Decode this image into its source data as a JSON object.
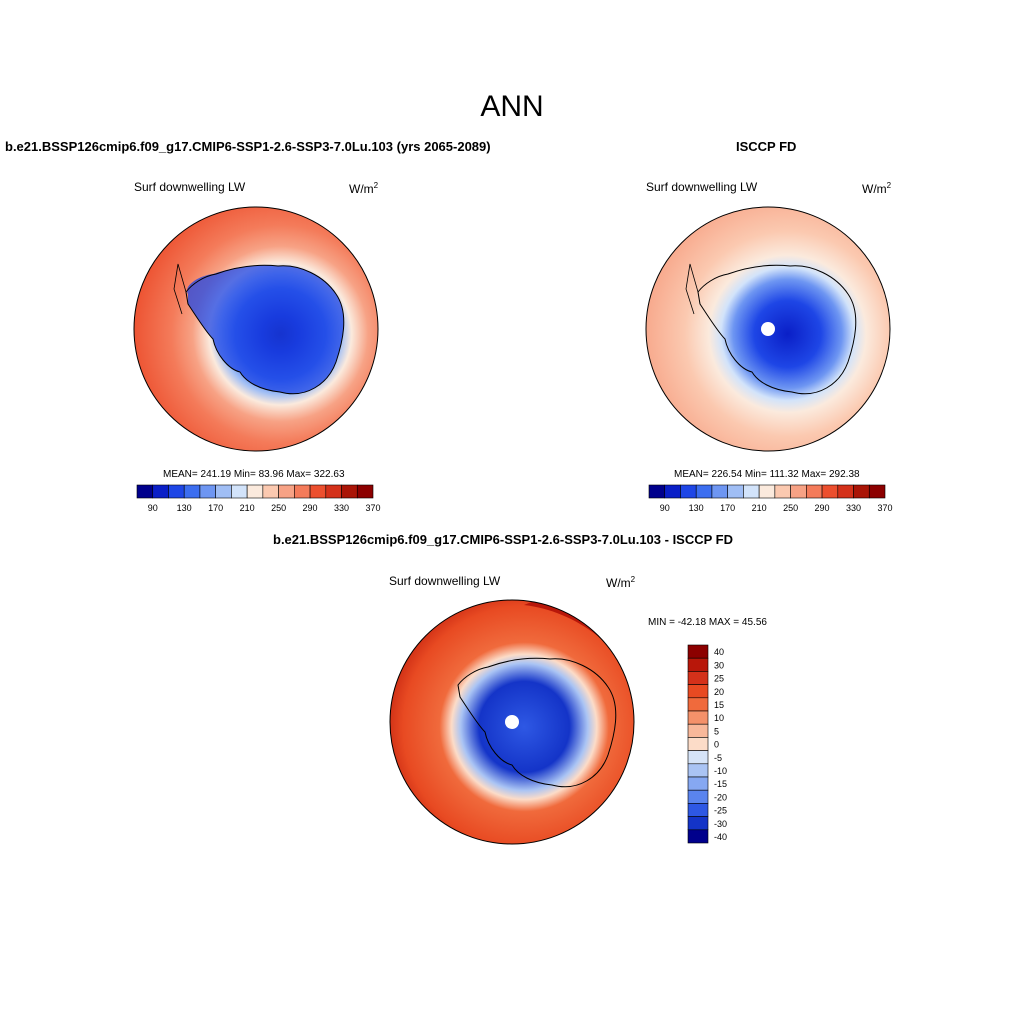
{
  "figure": {
    "title": "ANN",
    "colors": {
      "land_ice_dark": "#00008c",
      "warm_max": "#8c0000",
      "map_outline": "#000000"
    }
  },
  "panels": [
    {
      "id": "model",
      "header": "b.e21.BSSP126cmip6.f09_g17.CMIP6-SSP1-2.6-SSP3-7.0Lu.103 (yrs 2065-2089)",
      "variable": "Surf downwelling LW",
      "units_base": "W/m",
      "units_sup": "2",
      "stats": "MEAN= 241.19  Min=  83.96  Max= 322.63",
      "colorbar": {
        "colors": [
          "#00008c",
          "#0a1fc7",
          "#1e46e6",
          "#3c6ef0",
          "#6e96f2",
          "#a0bef5",
          "#d2e3fa",
          "#fbeadd",
          "#fbc9b0",
          "#f7a285",
          "#f47b5a",
          "#ec4f2e",
          "#d4311a",
          "#aa1507",
          "#8c0000"
        ],
        "tick_labels": [
          "90",
          "130",
          "170",
          "210",
          "250",
          "290",
          "330",
          "370"
        ]
      }
    },
    {
      "id": "obs",
      "header": "ISCCP FD",
      "variable": "Surf downwelling LW",
      "units_base": "W/m",
      "units_sup": "2",
      "stats": "MEAN= 226.54  Min= 111.32  Max= 292.38",
      "colorbar": {
        "colors": [
          "#00008c",
          "#0a1fc7",
          "#1e46e6",
          "#3c6ef0",
          "#6e96f2",
          "#a0bef5",
          "#d2e3fa",
          "#fbeadd",
          "#fbc9b0",
          "#f7a285",
          "#f47b5a",
          "#ec4f2e",
          "#d4311a",
          "#aa1507",
          "#8c0000"
        ],
        "tick_labels": [
          "90",
          "130",
          "170",
          "210",
          "250",
          "290",
          "330",
          "370"
        ]
      }
    },
    {
      "id": "diff",
      "header": "b.e21.BSSP126cmip6.f09_g17.CMIP6-SSP1-2.6-SSP3-7.0Lu.103 - ISCCP FD",
      "variable": "Surf downwelling LW",
      "units_base": "W/m",
      "units_sup": "2",
      "stats": "MIN = -42.18 MAX =  45.56",
      "colorbar": {
        "colors": [
          "#8c0000",
          "#b8170a",
          "#d4311a",
          "#e84a22",
          "#f06a3c",
          "#f4916a",
          "#f8b89a",
          "#fcdcc8",
          "#d6e4f8",
          "#aac4f4",
          "#86a8f2",
          "#5a84ee",
          "#2e58e4",
          "#1434c8",
          "#00008c"
        ],
        "tick_labels": [
          "40",
          "30",
          "25",
          "20",
          "15",
          "10",
          "5",
          "0",
          "-5",
          "-10",
          "-15",
          "-20",
          "-25",
          "-30",
          "-40"
        ]
      }
    }
  ]
}
